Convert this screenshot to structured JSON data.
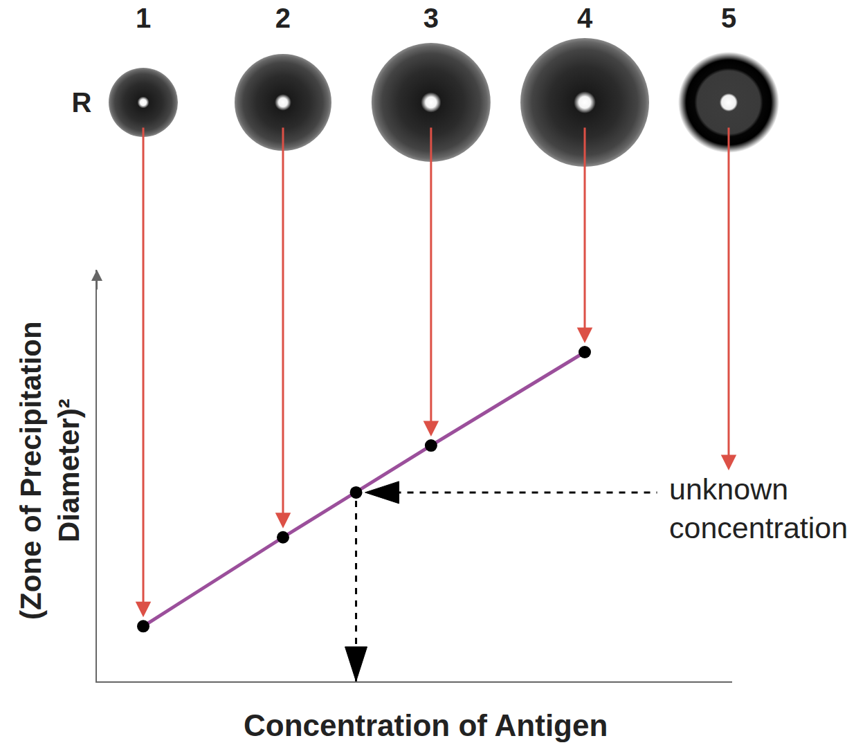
{
  "chart_data": {
    "type": "line",
    "x_label": "Concentration of Antigen",
    "y_label": [
      "(Zone of Precipitation",
      "Diameter)²"
    ],
    "xlim": [
      0,
      10
    ],
    "ylim": [
      0,
      10
    ],
    "tick_labels": false,
    "grid": false,
    "row_label": "R",
    "series": [
      {
        "color": "#9b4f9b",
        "marker": "circle",
        "points": [
          {
            "label": "1",
            "x": 0.73,
            "y": 1.34
          },
          {
            "label": "2",
            "x": 2.93,
            "y": 3.5
          },
          {
            "label": "3",
            "x": 5.26,
            "y": 5.73
          },
          {
            "label": "4",
            "x": 7.68,
            "y": 8.0
          }
        ]
      }
    ],
    "unknown": {
      "label": "5",
      "x": 4.08,
      "y": 4.59,
      "text": [
        "unknown",
        "concentration"
      ]
    }
  }
}
